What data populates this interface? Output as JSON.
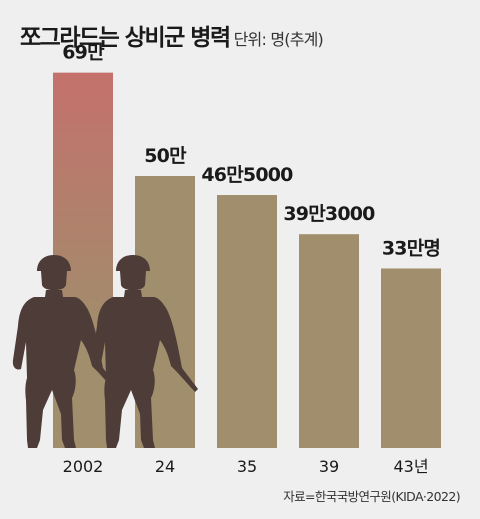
{
  "title": "쪼그라드는 상비군 병력",
  "unit": "단위: 명(추계)",
  "source": "자료=한국국방연구원(KIDA·2022)",
  "colors": {
    "bar": "#a08e6c",
    "highlight_top": "#c4716c",
    "silhouette": "#4d3c38",
    "background": "#efefef"
  },
  "chart_data": {
    "type": "bar",
    "categories": [
      "2002",
      "24",
      "35",
      "39",
      "43년"
    ],
    "values": [
      690000,
      500000,
      465000,
      393000,
      330000
    ],
    "data_labels": [
      "69만",
      "50만",
      "46만5000",
      "39만3000",
      "33만명"
    ],
    "ylim": [
      0,
      750000
    ],
    "grid": false,
    "highlight_index": 0
  },
  "decorations": [
    "soldier-silhouette-icon",
    "soldier-silhouette-icon"
  ]
}
